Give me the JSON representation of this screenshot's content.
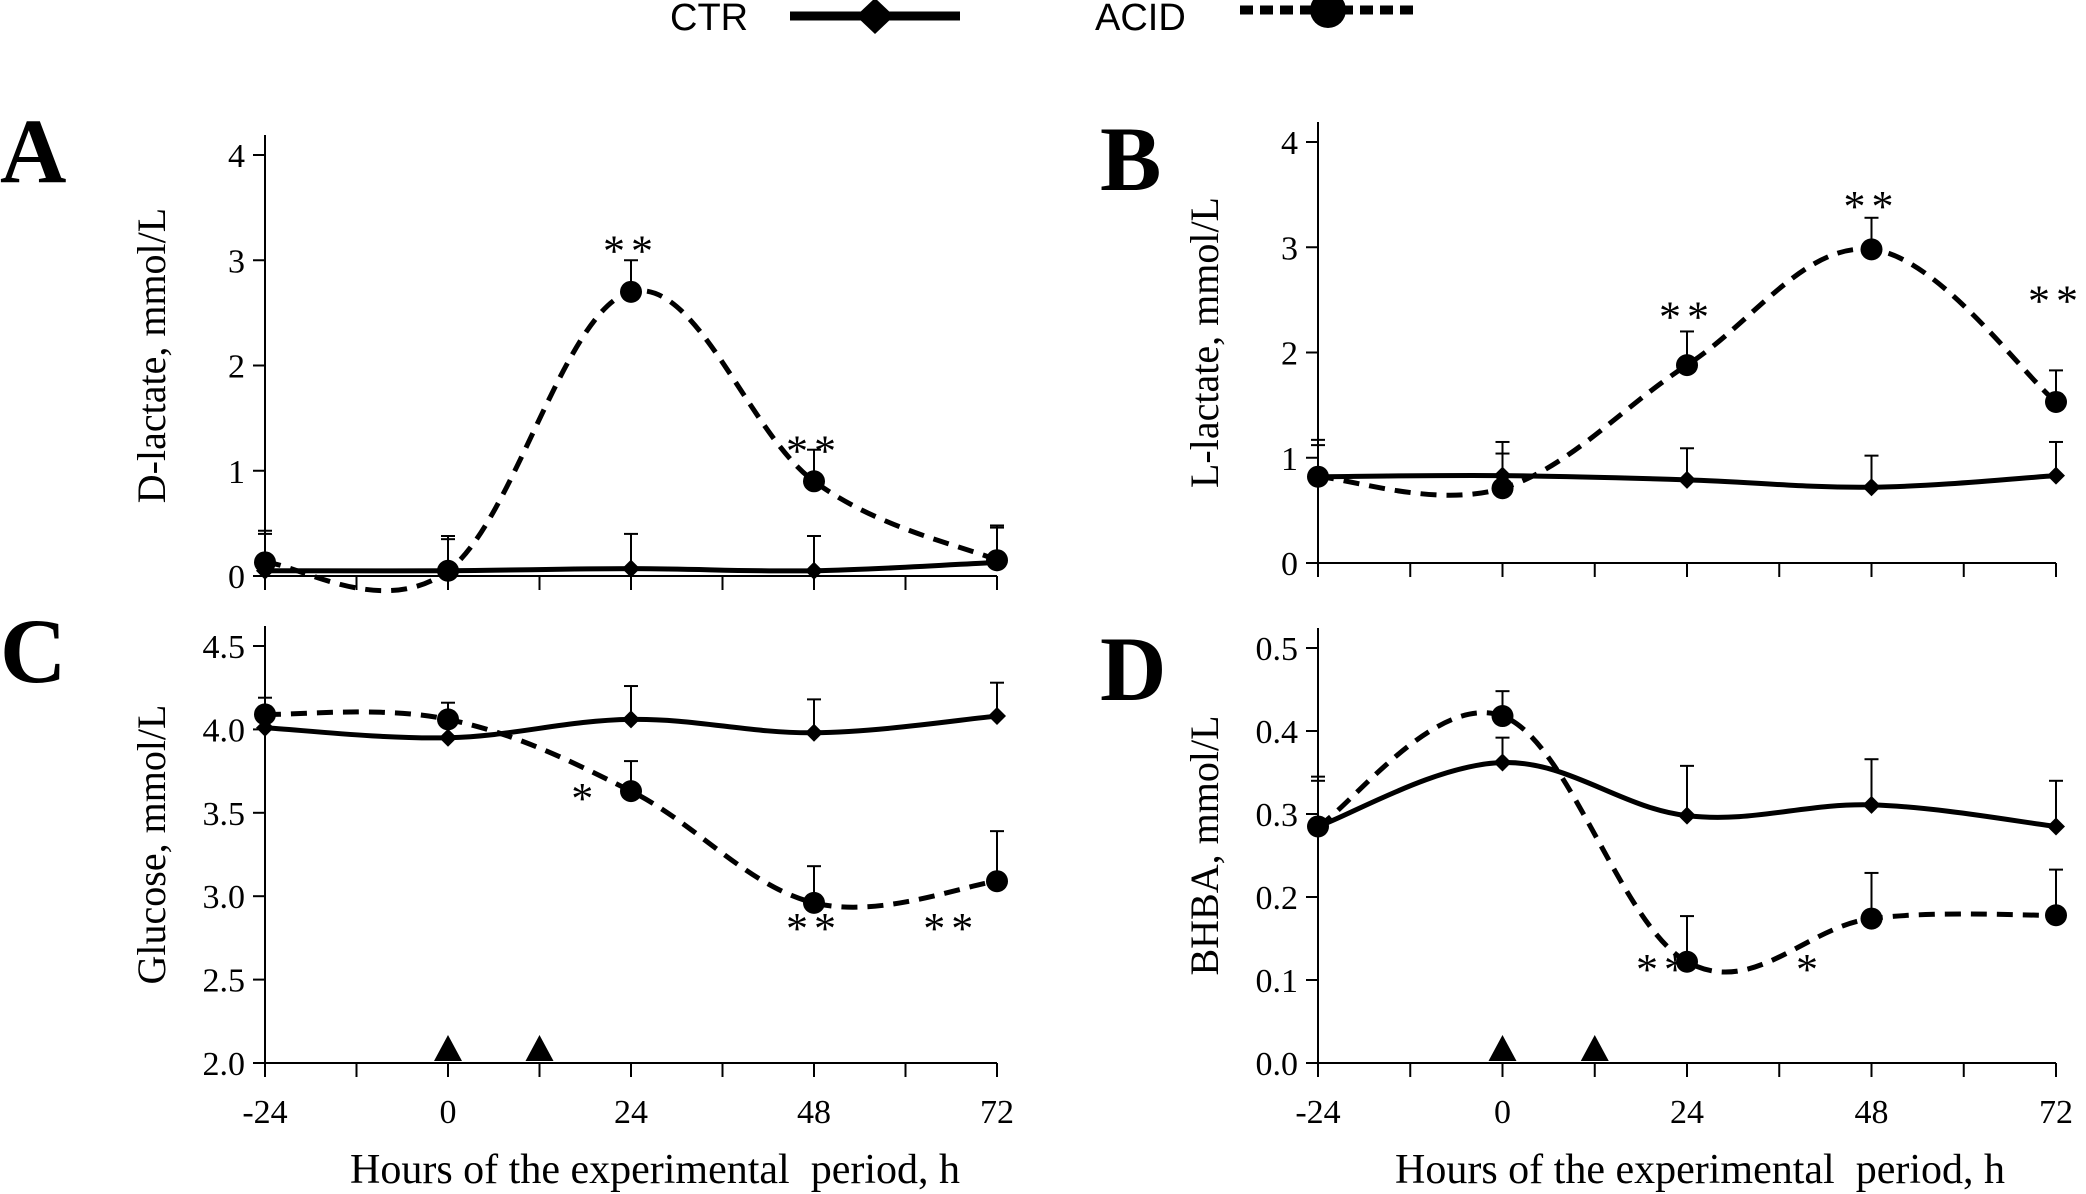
{
  "legend": {
    "entries": [
      {
        "label": "CTR",
        "style": "solid",
        "marker": "diamond"
      },
      {
        "label": "ACID",
        "style": "dashed",
        "marker": "circle"
      }
    ],
    "placement": "top-center"
  },
  "x_axis_title": "Hours of the experimental  period, h",
  "chart_data": [
    {
      "type": "line",
      "panel_letter": "A",
      "ylabel": "D-lactate, mmol/L",
      "x": [
        -24,
        0,
        24,
        48,
        72
      ],
      "xlim": [
        -24,
        72
      ],
      "x_ticks": [
        "-24",
        "0",
        "24",
        "48",
        "72"
      ],
      "ylim": [
        0,
        4
      ],
      "y_ticks": [
        "0",
        "1",
        "2",
        "3",
        "4"
      ],
      "show_x_tick_labels": false,
      "series": [
        {
          "name": "CTR",
          "values": [
            0.05,
            0.05,
            0.07,
            0.05,
            0.13
          ],
          "error": [
            0.35,
            0.3,
            0.33,
            0.33,
            0.33
          ]
        },
        {
          "name": "ACID",
          "values": [
            0.13,
            0.05,
            2.7,
            0.9,
            0.15
          ],
          "error": [
            0.3,
            0.33,
            0.3,
            0.3,
            0.33
          ]
        }
      ],
      "annotations": [
        {
          "x": 24,
          "y": 2.95,
          "text": "**"
        },
        {
          "x": 48,
          "y": 1.05,
          "text": "**"
        }
      ],
      "markers": []
    },
    {
      "type": "line",
      "panel_letter": "B",
      "ylabel": "L-lactate,  mmol/L",
      "x": [
        -24,
        0,
        24,
        48,
        72
      ],
      "xlim": [
        -24,
        72
      ],
      "x_ticks": [
        "-24",
        "0",
        "24",
        "48",
        "72"
      ],
      "ylim": [
        0,
        4
      ],
      "y_ticks": [
        "0",
        "1",
        "2",
        "3",
        "4"
      ],
      "show_x_tick_labels": false,
      "series": [
        {
          "name": "CTR",
          "values": [
            0.82,
            0.83,
            0.79,
            0.72,
            0.83
          ],
          "error": [
            0.35,
            0.32,
            0.3,
            0.3,
            0.32
          ]
        },
        {
          "name": "ACID",
          "values": [
            0.82,
            0.71,
            1.88,
            2.98,
            1.53
          ],
          "error": [
            0.3,
            0.33,
            0.32,
            0.3,
            0.3
          ]
        }
      ],
      "annotations": [
        {
          "x": 24,
          "y": 2.2,
          "text": "**"
        },
        {
          "x": 48,
          "y": 3.25,
          "text": "**"
        },
        {
          "x": 72,
          "y": 2.35,
          "text": "**"
        }
      ],
      "markers": []
    },
    {
      "type": "line",
      "panel_letter": "C",
      "ylabel": "Glucose, mmol/L",
      "x": [
        -24,
        0,
        24,
        48,
        72
      ],
      "xlim": [
        -24,
        72
      ],
      "x_ticks": [
        "-24",
        "0",
        "24",
        "48",
        "72"
      ],
      "ylim": [
        2.0,
        4.5
      ],
      "y_ticks": [
        "2.0",
        "2.5",
        "3.0",
        "3.5",
        "4.0",
        "4.5"
      ],
      "show_x_tick_labels": true,
      "series": [
        {
          "name": "CTR",
          "values": [
            4.01,
            3.95,
            4.06,
            3.98,
            4.08
          ],
          "error": [
            0.1,
            0.1,
            0.2,
            0.2,
            0.2
          ]
        },
        {
          "name": "ACID",
          "values": [
            4.09,
            4.06,
            3.63,
            2.96,
            3.09
          ],
          "error": [
            0.1,
            0.1,
            0.18,
            0.22,
            0.3
          ]
        }
      ],
      "annotations": [
        {
          "x": 18,
          "y": 3.5,
          "text": "*"
        },
        {
          "x": 48,
          "y": 2.72,
          "text": "**"
        },
        {
          "x": 66,
          "y": 2.72,
          "text": "**"
        }
      ],
      "markers": [
        0,
        12
      ]
    },
    {
      "type": "line",
      "panel_letter": "D",
      "ylabel": "BHBA,  mmol/L",
      "x": [
        -24,
        0,
        24,
        48,
        72
      ],
      "xlim": [
        -24,
        72
      ],
      "x_ticks": [
        "-24",
        "0",
        "24",
        "48",
        "72"
      ],
      "ylim": [
        0.0,
        0.5
      ],
      "y_ticks": [
        "0.0",
        "0.1",
        "0.2",
        "0.3",
        "0.4",
        "0.5"
      ],
      "show_x_tick_labels": true,
      "series": [
        {
          "name": "CTR",
          "values": [
            0.285,
            0.362,
            0.298,
            0.311,
            0.285
          ],
          "error": [
            0.06,
            0.03,
            0.06,
            0.055,
            0.055
          ]
        },
        {
          "name": "ACID",
          "values": [
            0.285,
            0.418,
            0.122,
            0.174,
            0.178
          ],
          "error": [
            0.055,
            0.03,
            0.055,
            0.055,
            0.055
          ]
        }
      ],
      "annotations": [
        {
          "x": 21,
          "y": 0.095,
          "text": "**"
        },
        {
          "x": 40,
          "y": 0.095,
          "text": "*"
        }
      ],
      "markers": [
        0,
        12
      ]
    }
  ]
}
